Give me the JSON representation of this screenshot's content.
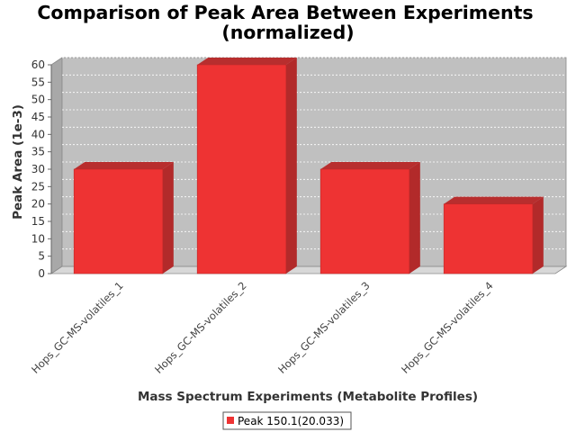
{
  "chart_data": {
    "type": "bar",
    "title": "Comparison of Peak Area Between Experiments",
    "subtitle": "(normalized)",
    "xlabel": "Mass Spectrum Experiments (Metabolite Profiles)",
    "ylabel": "Peak Area (1e-3)",
    "categories": [
      "Hops_GC-MS-volatiles_1",
      "Hops_GC-MS-volatiles_2",
      "Hops_GC-MS-volatiles_3",
      "Hops_GC-MS-volatiles_4"
    ],
    "series": [
      {
        "name": "Peak 150.1(20.033)",
        "values": [
          30,
          60,
          30,
          20
        ]
      }
    ],
    "ylim": [
      0,
      60
    ],
    "yticks": [
      0,
      5,
      10,
      15,
      20,
      25,
      30,
      35,
      40,
      45,
      50,
      55,
      60
    ],
    "grid": true,
    "legend_position": "bottom",
    "colors": {
      "bar": "#ee3333",
      "bar_top": "#b82e2e",
      "bar_side": "#b22a2a",
      "plot_background": "#c0c0c0",
      "grid": "#ffffff"
    }
  }
}
